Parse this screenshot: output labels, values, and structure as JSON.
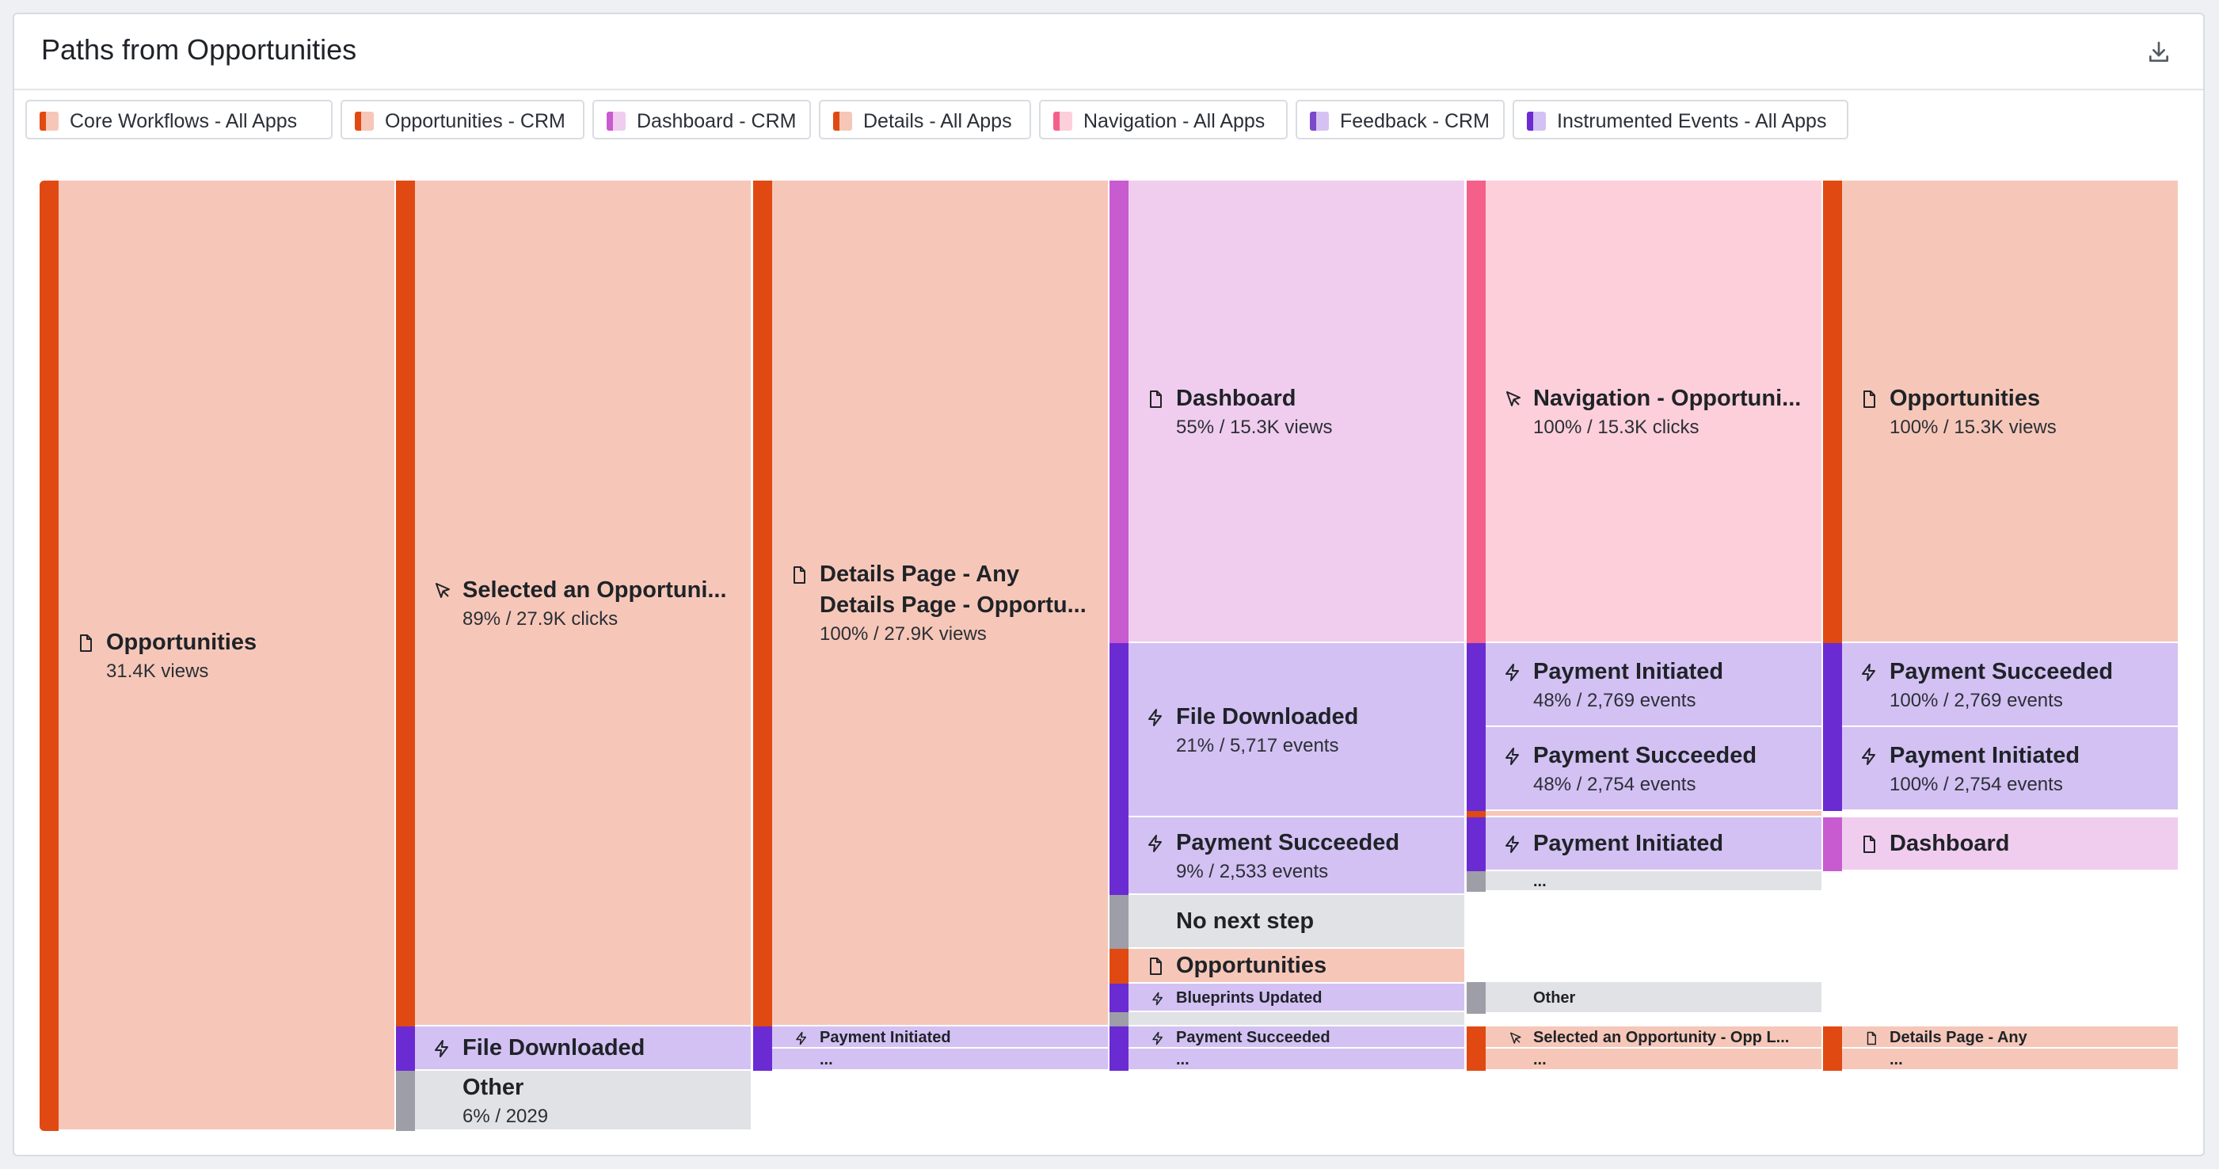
{
  "panel": {
    "title": "Paths from Opportunities",
    "download_icon": "download-icon"
  },
  "legend": [
    {
      "label": "Core Workflows - All Apps",
      "dark": "#e04a12",
      "light": "#f6c7b8"
    },
    {
      "label": "Opportunities - CRM",
      "dark": "#e04a12",
      "light": "#f6c7b8"
    },
    {
      "label": "Dashboard - CRM",
      "dark": "#c95bd0",
      "light": "#f0cdee"
    },
    {
      "label": "Details - All Apps",
      "dark": "#e04a12",
      "light": "#f6c7b8"
    },
    {
      "label": "Navigation - All Apps",
      "dark": "#f5608a",
      "light": "#fdcfdb"
    },
    {
      "label": "Feedback - CRM",
      "dark": "#7b49c9",
      "light": "#d6c2f2"
    },
    {
      "label": "Instrumented Events - All Apps",
      "dark": "#6a2bd3",
      "light": "#d3c1f3"
    }
  ],
  "colors": {
    "orange_bar": "#e04a12",
    "orange_fill": "#f6c7b8",
    "purple_bar": "#6a2bd3",
    "purple_fill": "#d3c1f3",
    "magenta_bar": "#c95bd0",
    "magenta_fill": "#f0cdee",
    "pink_bar": "#f5608a",
    "pink_fill": "#fdcfdb",
    "gray_bar": "#9e9ea8",
    "gray_fill": "#e1e2e5"
  },
  "steps": [
    [
      {
        "name": "Opportunities",
        "sub": "31.4K views",
        "icon": "page-icon",
        "color": "orange"
      }
    ],
    [
      {
        "name": "Selected an Opportuni...",
        "sub": "89% / 27.9K clicks",
        "icon": "cursor-icon",
        "color": "orange"
      },
      {
        "name": "File Downloaded",
        "sub": "",
        "icon": "bolt-icon",
        "color": "purple"
      },
      {
        "name": "Other",
        "sub": "6% / 2029",
        "icon": "",
        "color": "gray"
      }
    ],
    [
      {
        "name": "Details Page - Any",
        "name2": "Details Page - Opportu...",
        "sub": "100% / 27.9K views",
        "icon": "page-icon",
        "color": "orange"
      },
      {
        "name": "Payment Initiated",
        "sub": "",
        "icon": "bolt-icon",
        "color": "purple"
      },
      {
        "name": "...",
        "sub": "",
        "icon": "",
        "color": "purple"
      }
    ],
    [
      {
        "name": "Dashboard",
        "sub": "55% / 15.3K views",
        "icon": "page-icon",
        "color": "magenta"
      },
      {
        "name": "File Downloaded",
        "sub": "21% / 5,717 events",
        "icon": "bolt-icon",
        "color": "purple"
      },
      {
        "name": "Payment Succeeded",
        "sub": "9% / 2,533 events",
        "icon": "bolt-icon",
        "color": "purple"
      },
      {
        "name": "No next step",
        "sub": "",
        "icon": "",
        "color": "gray"
      },
      {
        "name": "Opportunities",
        "sub": "",
        "icon": "page-icon",
        "color": "orange"
      },
      {
        "name": "Blueprints Updated",
        "sub": "",
        "icon": "bolt-icon",
        "color": "purple"
      },
      {
        "name": "",
        "sub": "",
        "icon": "",
        "color": "gray"
      },
      {
        "name": "Payment Succeeded",
        "sub": "",
        "icon": "bolt-icon",
        "color": "purple"
      },
      {
        "name": "...",
        "sub": "",
        "icon": "",
        "color": "purple"
      }
    ],
    [
      {
        "name": "Navigation - Opportuni...",
        "sub": "100% / 15.3K clicks",
        "icon": "cursor-icon",
        "color": "pink"
      },
      {
        "name": "Payment Initiated",
        "sub": "48% / 2,769 events",
        "icon": "bolt-icon",
        "color": "purple"
      },
      {
        "name": "Payment Succeeded",
        "sub": "48% / 2,754 events",
        "icon": "bolt-icon",
        "color": "purple"
      },
      {
        "name": "",
        "sub": "",
        "icon": "",
        "color": "orange"
      },
      {
        "name": "Payment Initiated",
        "sub": "",
        "icon": "bolt-icon",
        "color": "purple"
      },
      {
        "name": "...",
        "sub": "",
        "icon": "",
        "color": "gray"
      },
      {
        "name": "Other",
        "sub": "",
        "icon": "",
        "color": "gray"
      },
      {
        "name": "Selected an Opportunity - Opp L...",
        "sub": "",
        "icon": "cursor-icon",
        "color": "orange"
      },
      {
        "name": "...",
        "sub": "",
        "icon": "",
        "color": "orange"
      }
    ],
    [
      {
        "name": "Opportunities",
        "sub": "100% / 15.3K views",
        "icon": "page-icon",
        "color": "orange"
      },
      {
        "name": "Payment Succeeded",
        "sub": "100% / 2,769 events",
        "icon": "bolt-icon",
        "color": "purple"
      },
      {
        "name": "Payment Initiated",
        "sub": "100% / 2,754 events",
        "icon": "bolt-icon",
        "color": "purple"
      },
      {
        "name": "Dashboard",
        "sub": "",
        "icon": "page-icon",
        "color": "magenta"
      },
      {
        "name": "Details Page - Any",
        "sub": "",
        "icon": "page-icon",
        "color": "orange"
      },
      {
        "name": "...",
        "sub": "",
        "icon": "",
        "color": "orange"
      }
    ]
  ]
}
